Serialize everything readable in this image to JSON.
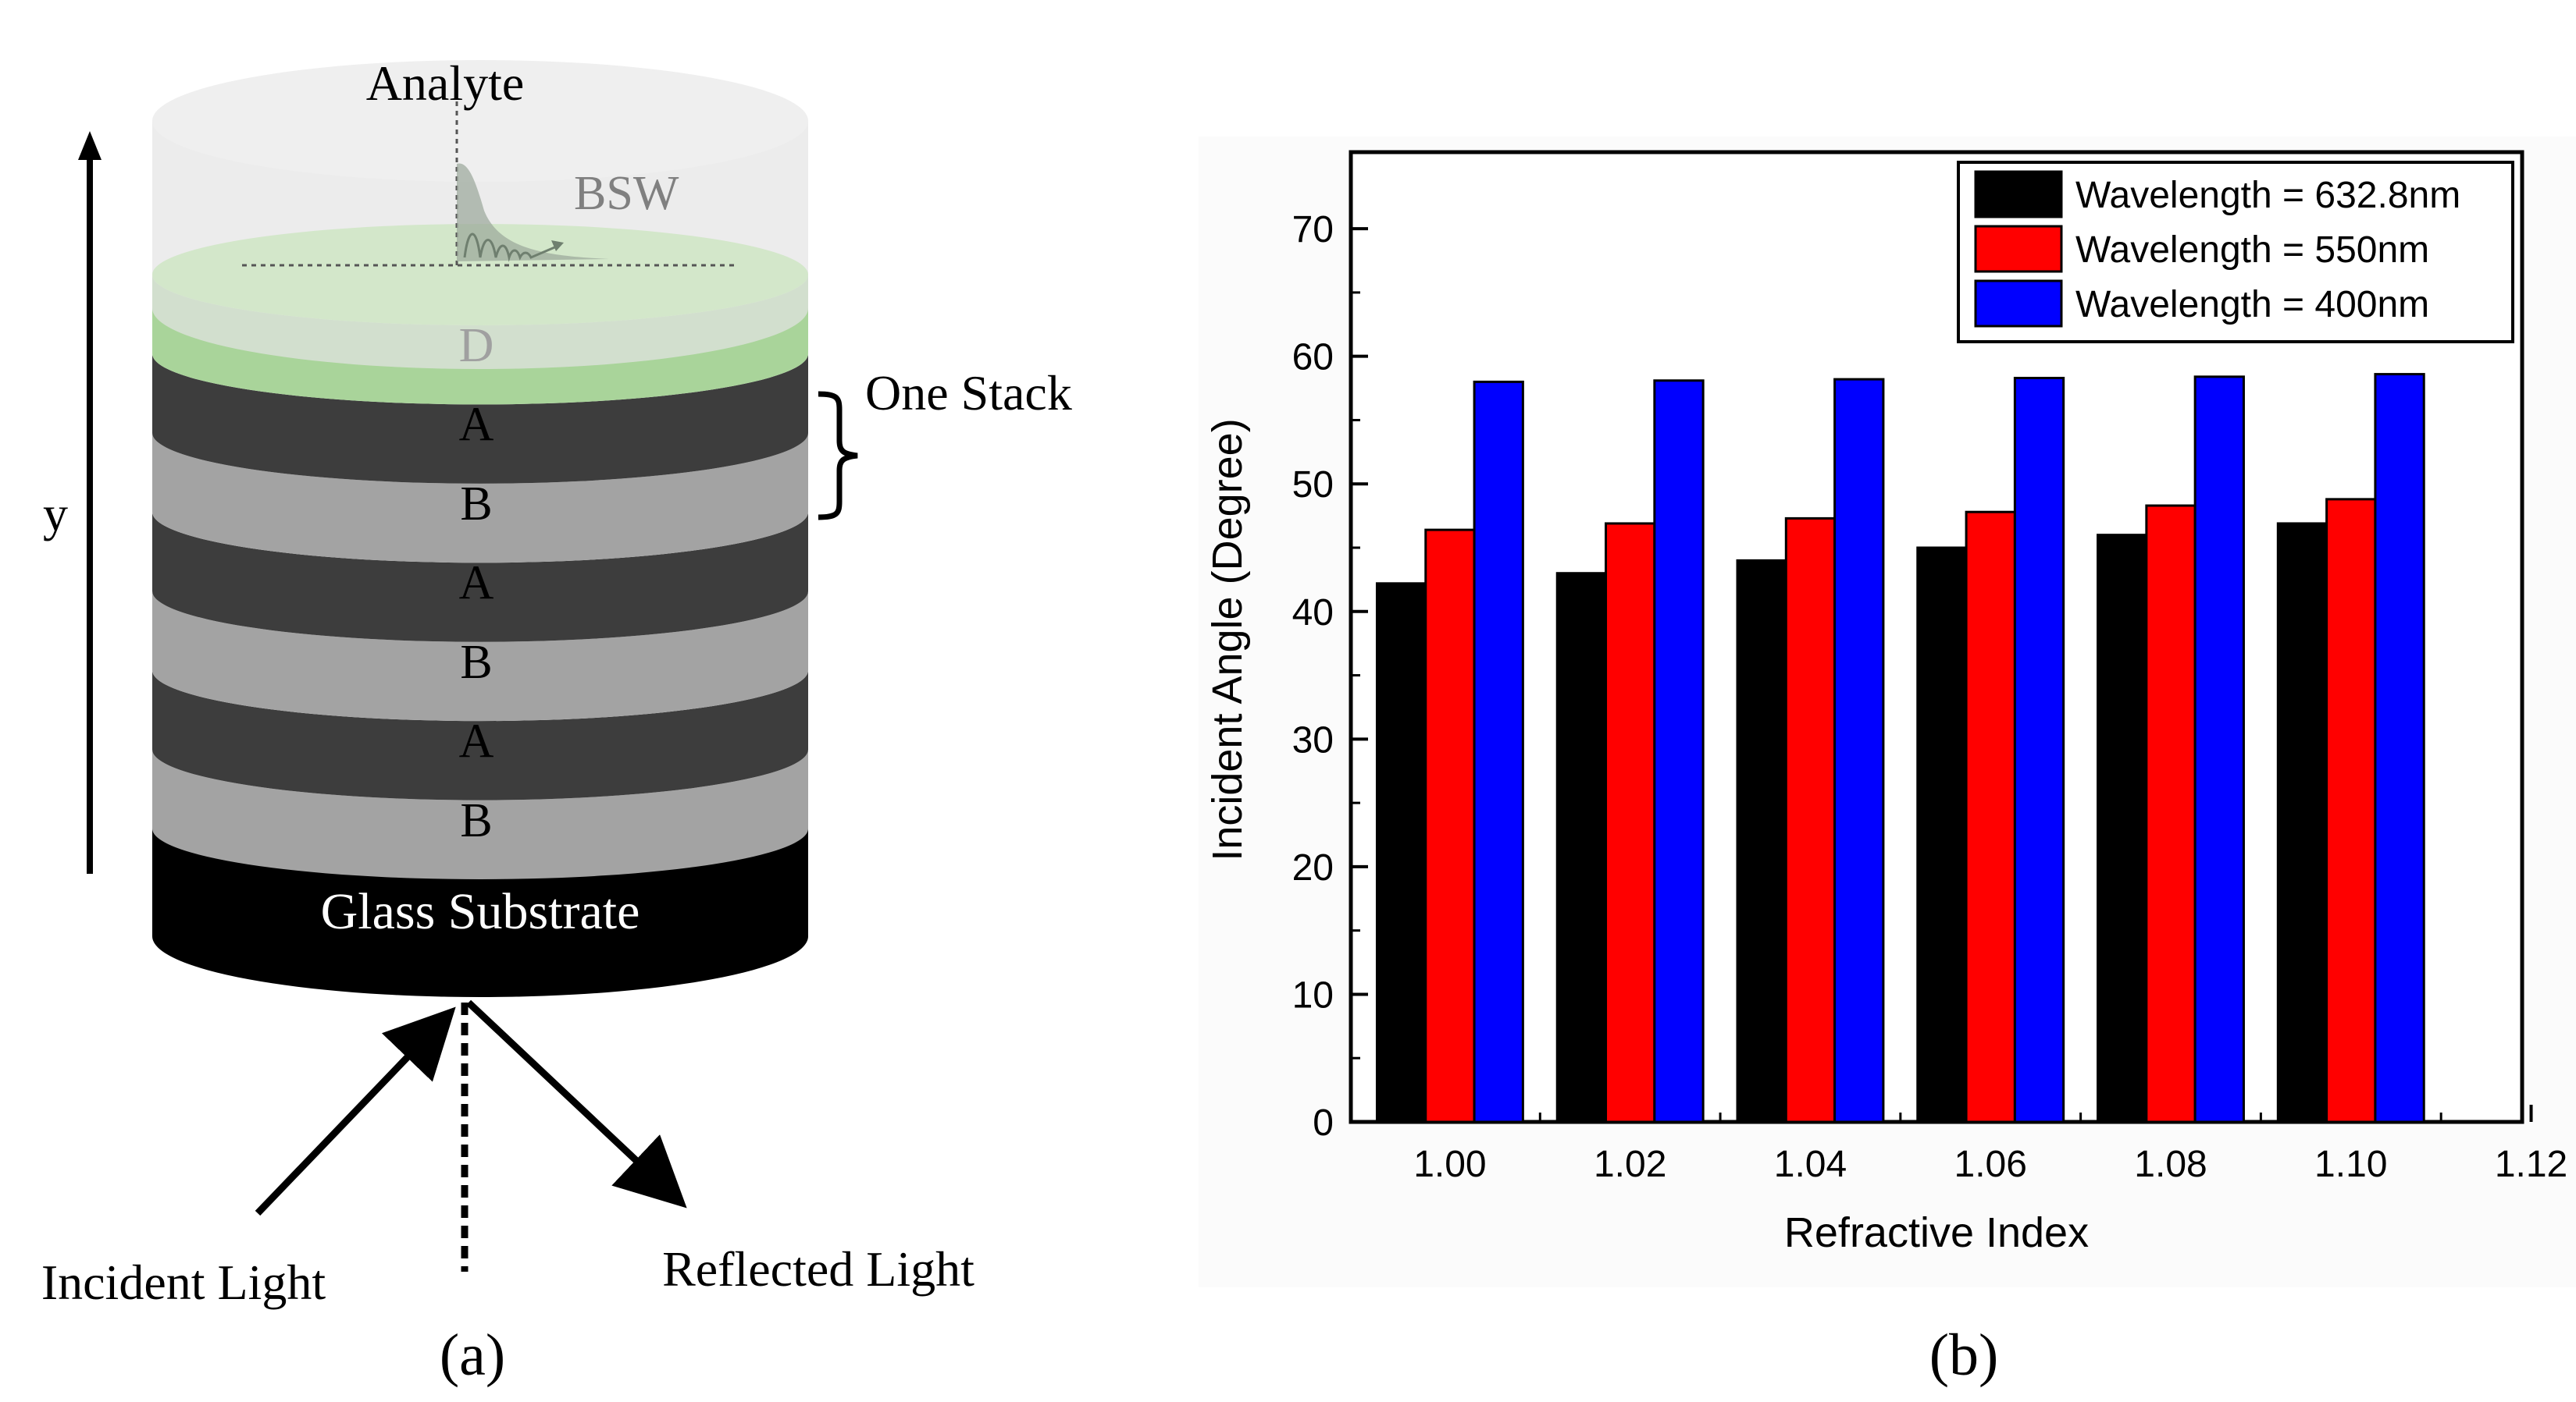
{
  "panel_a": {
    "caption": "(a)",
    "analyte_label": "Analyte",
    "bsw_label": "BSW",
    "one_stack_label": "One Stack",
    "y_axis_label": "y",
    "layers": [
      {
        "label": "D",
        "color": "#a9d49a"
      },
      {
        "label": "A",
        "color": "#3d3d3d"
      },
      {
        "label": "B",
        "color": "#a3a3a3"
      },
      {
        "label": "A",
        "color": "#3d3d3d"
      },
      {
        "label": "B",
        "color": "#a3a3a3"
      },
      {
        "label": "A",
        "color": "#3d3d3d"
      },
      {
        "label": "B",
        "color": "#a3a3a3"
      }
    ],
    "substrate_label": "Glass Substrate",
    "incident_label": "Incident Light",
    "reflected_label": "Reflected Light"
  },
  "panel_b": {
    "caption": "(b)"
  },
  "chart_data": {
    "type": "bar",
    "title": "",
    "xlabel": "Refractive Index",
    "ylabel": "Incident Angle (Degree)",
    "categories": [
      "1.00",
      "1.02",
      "1.04",
      "1.06",
      "1.08",
      "1.10"
    ],
    "x_ticks": [
      "1.00",
      "1.02",
      "1.04",
      "1.06",
      "1.08",
      "1.10",
      "1.12"
    ],
    "y_ticks": [
      0,
      10,
      20,
      30,
      40,
      50,
      60,
      70
    ],
    "ylim": [
      0,
      76
    ],
    "legend_position": "top-right",
    "series": [
      {
        "name": "Wavelength = 632.8nm",
        "color": "#000000",
        "values": [
          42.2,
          43.0,
          44.0,
          45.0,
          46.0,
          46.9
        ]
      },
      {
        "name": "Wavelength = 550nm",
        "color": "#ff0000",
        "values": [
          46.4,
          46.9,
          47.3,
          47.8,
          48.3,
          48.8
        ]
      },
      {
        "name": "Wavelength = 400nm",
        "color": "#0000ff",
        "values": [
          58.0,
          58.1,
          58.2,
          58.3,
          58.4,
          58.6
        ]
      }
    ]
  }
}
